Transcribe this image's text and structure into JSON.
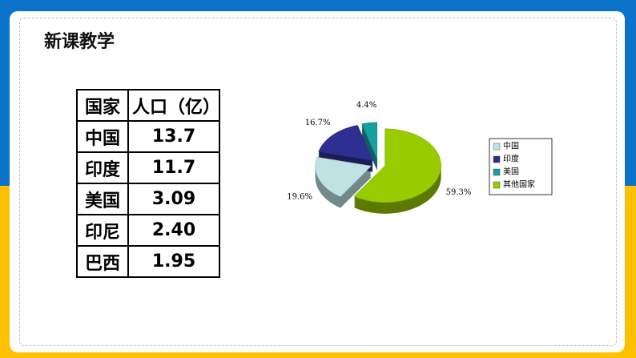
{
  "header": {
    "title": "新课教学"
  },
  "table": {
    "header": [
      "国家",
      "人口（亿）"
    ],
    "rows": [
      [
        "中国",
        "13.7"
      ],
      [
        "印度",
        "11.7"
      ],
      [
        "美国",
        "3.09"
      ],
      [
        "印尼",
        "2.40"
      ],
      [
        "巴西",
        "1.95"
      ]
    ]
  },
  "chart_data": {
    "type": "pie",
    "categories": [
      "中国",
      "印度",
      "美国",
      "其他国家"
    ],
    "values": [
      19.6,
      16.7,
      4.4,
      59.3
    ],
    "value_labels": [
      "19.6%",
      "16.7%",
      "4.4%",
      "59.3%"
    ],
    "colors": [
      "#bfe3e3",
      "#2f2f91",
      "#17a0a0",
      "#99cc00"
    ],
    "legend": "right"
  }
}
